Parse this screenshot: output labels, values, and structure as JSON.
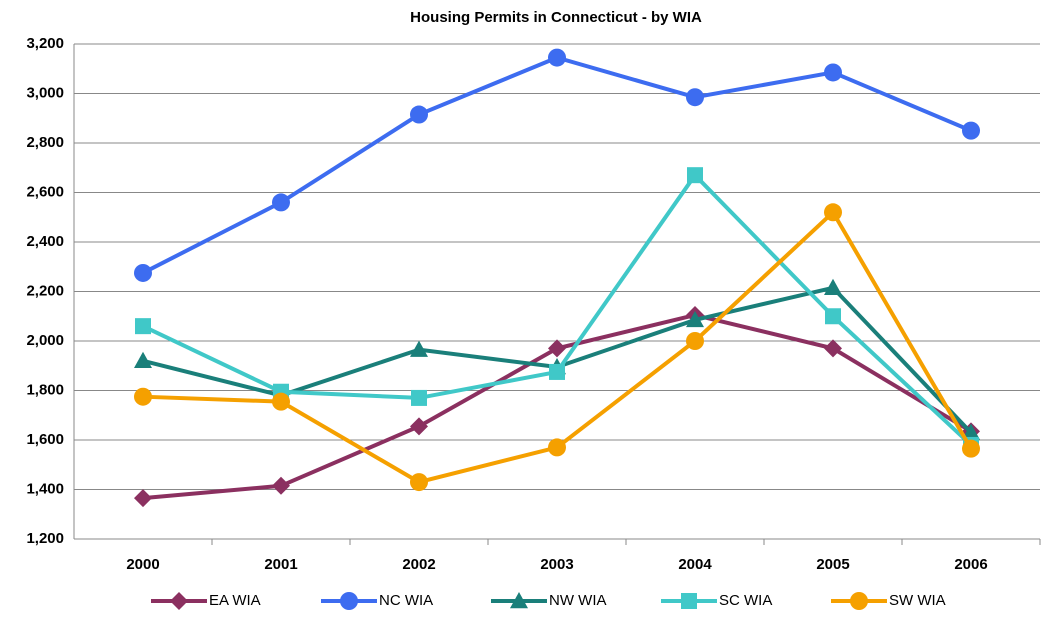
{
  "chart_data": {
    "type": "line",
    "title": "Housing Permits in Connecticut - by WIA",
    "categories": [
      "2000",
      "2001",
      "2002",
      "2003",
      "2004",
      "2005",
      "2006"
    ],
    "series": [
      {
        "name": "EA WIA",
        "color": "#8b3060",
        "marker": "diamond",
        "values": [
          1365,
          1415,
          1655,
          1970,
          2105,
          1970,
          1635
        ]
      },
      {
        "name": "NC WIA",
        "color": "#3d6cf0",
        "marker": "circle",
        "values": [
          2275,
          2560,
          2915,
          3145,
          2985,
          3085,
          2850
        ]
      },
      {
        "name": "NW WIA",
        "color": "#1a7f7a",
        "marker": "triangle",
        "values": [
          1920,
          1780,
          1965,
          1895,
          2085,
          2215,
          1630
        ]
      },
      {
        "name": "SC WIA",
        "color": "#40c8c8",
        "marker": "square",
        "values": [
          2060,
          1795,
          1770,
          1875,
          2670,
          2100,
          1580
        ]
      },
      {
        "name": "SW WIA",
        "color": "#f5a000",
        "marker": "circle",
        "values": [
          1775,
          1755,
          1430,
          1570,
          2000,
          2520,
          1565
        ]
      }
    ],
    "ylim": [
      1200,
      3200
    ],
    "yticks": [
      {
        "value": 1200,
        "label": "1,200"
      },
      {
        "value": 1400,
        "label": "1,400"
      },
      {
        "value": 1600,
        "label": "1,600"
      },
      {
        "value": 1800,
        "label": "1,800"
      },
      {
        "value": 2000,
        "label": "2,000"
      },
      {
        "value": 2200,
        "label": "2,200"
      },
      {
        "value": 2400,
        "label": "2,400"
      },
      {
        "value": 2600,
        "label": "2,600"
      },
      {
        "value": 2800,
        "label": "2,800"
      },
      {
        "value": 3000,
        "label": "3,000"
      },
      {
        "value": 3200,
        "label": "3,200"
      }
    ],
    "grid": true,
    "legend": "bottom"
  }
}
